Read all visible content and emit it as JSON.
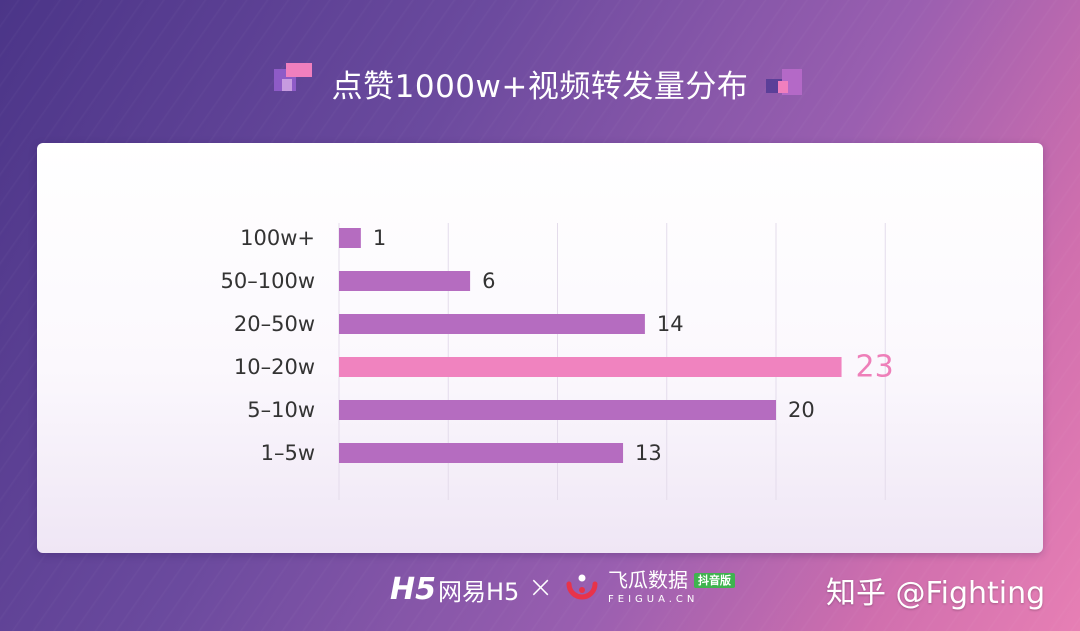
{
  "title": "点赞1000w+视频转发量分布",
  "colors": {
    "bar": "#b56cc0",
    "highlight_bar": "#f083bf",
    "highlight_label": "#ee7fb9",
    "label": "#333333",
    "grid": "#e4dceb"
  },
  "chart_data": {
    "type": "bar",
    "orientation": "horizontal",
    "categories": [
      "100w+",
      "50–100w",
      "20–50w",
      "10–20w",
      "5–10w",
      "1–5w"
    ],
    "values": [
      1,
      6,
      14,
      23,
      20,
      13
    ],
    "highlight_index": 3,
    "title": "点赞1000w+视频转发量分布",
    "xlabel": "",
    "ylabel": "",
    "xlim": [
      0,
      25
    ],
    "grid": "vertical",
    "legend": "none"
  },
  "footer": {
    "netease_mark": "H5",
    "netease_name": "网易H5",
    "separator": "×",
    "feigua_name": "飞瓜数据",
    "feigua_badge": "抖音版",
    "feigua_domain": "FEIGUA.CN",
    "watermark": "知乎 @Fighting"
  }
}
